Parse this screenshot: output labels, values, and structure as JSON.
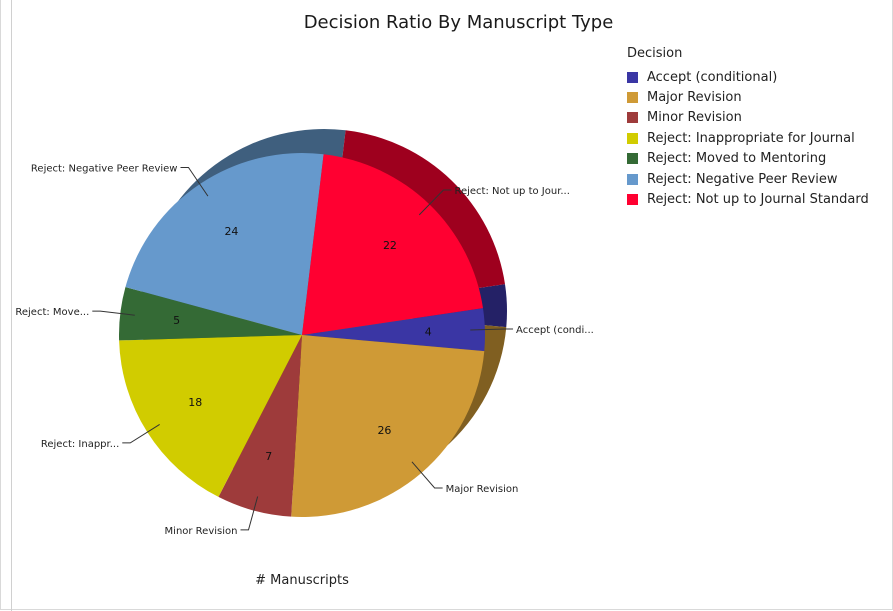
{
  "chart_data": {
    "type": "pie",
    "title": "Decision Ratio By Manuscript Type",
    "legend_title": "Decision",
    "legend_position": "top-right",
    "footer_label": "# Manuscripts",
    "slices": [
      {
        "name": "Accept (conditional)",
        "value": 4,
        "color": "#3a36a4",
        "callout": "Accept (condi..."
      },
      {
        "name": "Major Revision",
        "value": 26,
        "color": "#cf9a36",
        "callout": "Major Revision"
      },
      {
        "name": "Minor Revision",
        "value": 7,
        "color": "#9e3b3b",
        "callout": "Minor Revision"
      },
      {
        "name": "Reject: Inappropriate for Journal",
        "value": 18,
        "color": "#d1cc00",
        "callout": "Reject: Inappr..."
      },
      {
        "name": "Reject: Moved to Mentoring",
        "value": 5,
        "color": "#346a35",
        "callout": "Reject: Move..."
      },
      {
        "name": "Reject: Negative Peer Review",
        "value": 24,
        "color": "#6699cc",
        "callout": "Reject: Negative Peer Review"
      },
      {
        "name": "Reject: Not up to Journal Standard",
        "value": 22,
        "color": "#ff0031",
        "callout": "Reject: Not up to Jour..."
      }
    ]
  }
}
